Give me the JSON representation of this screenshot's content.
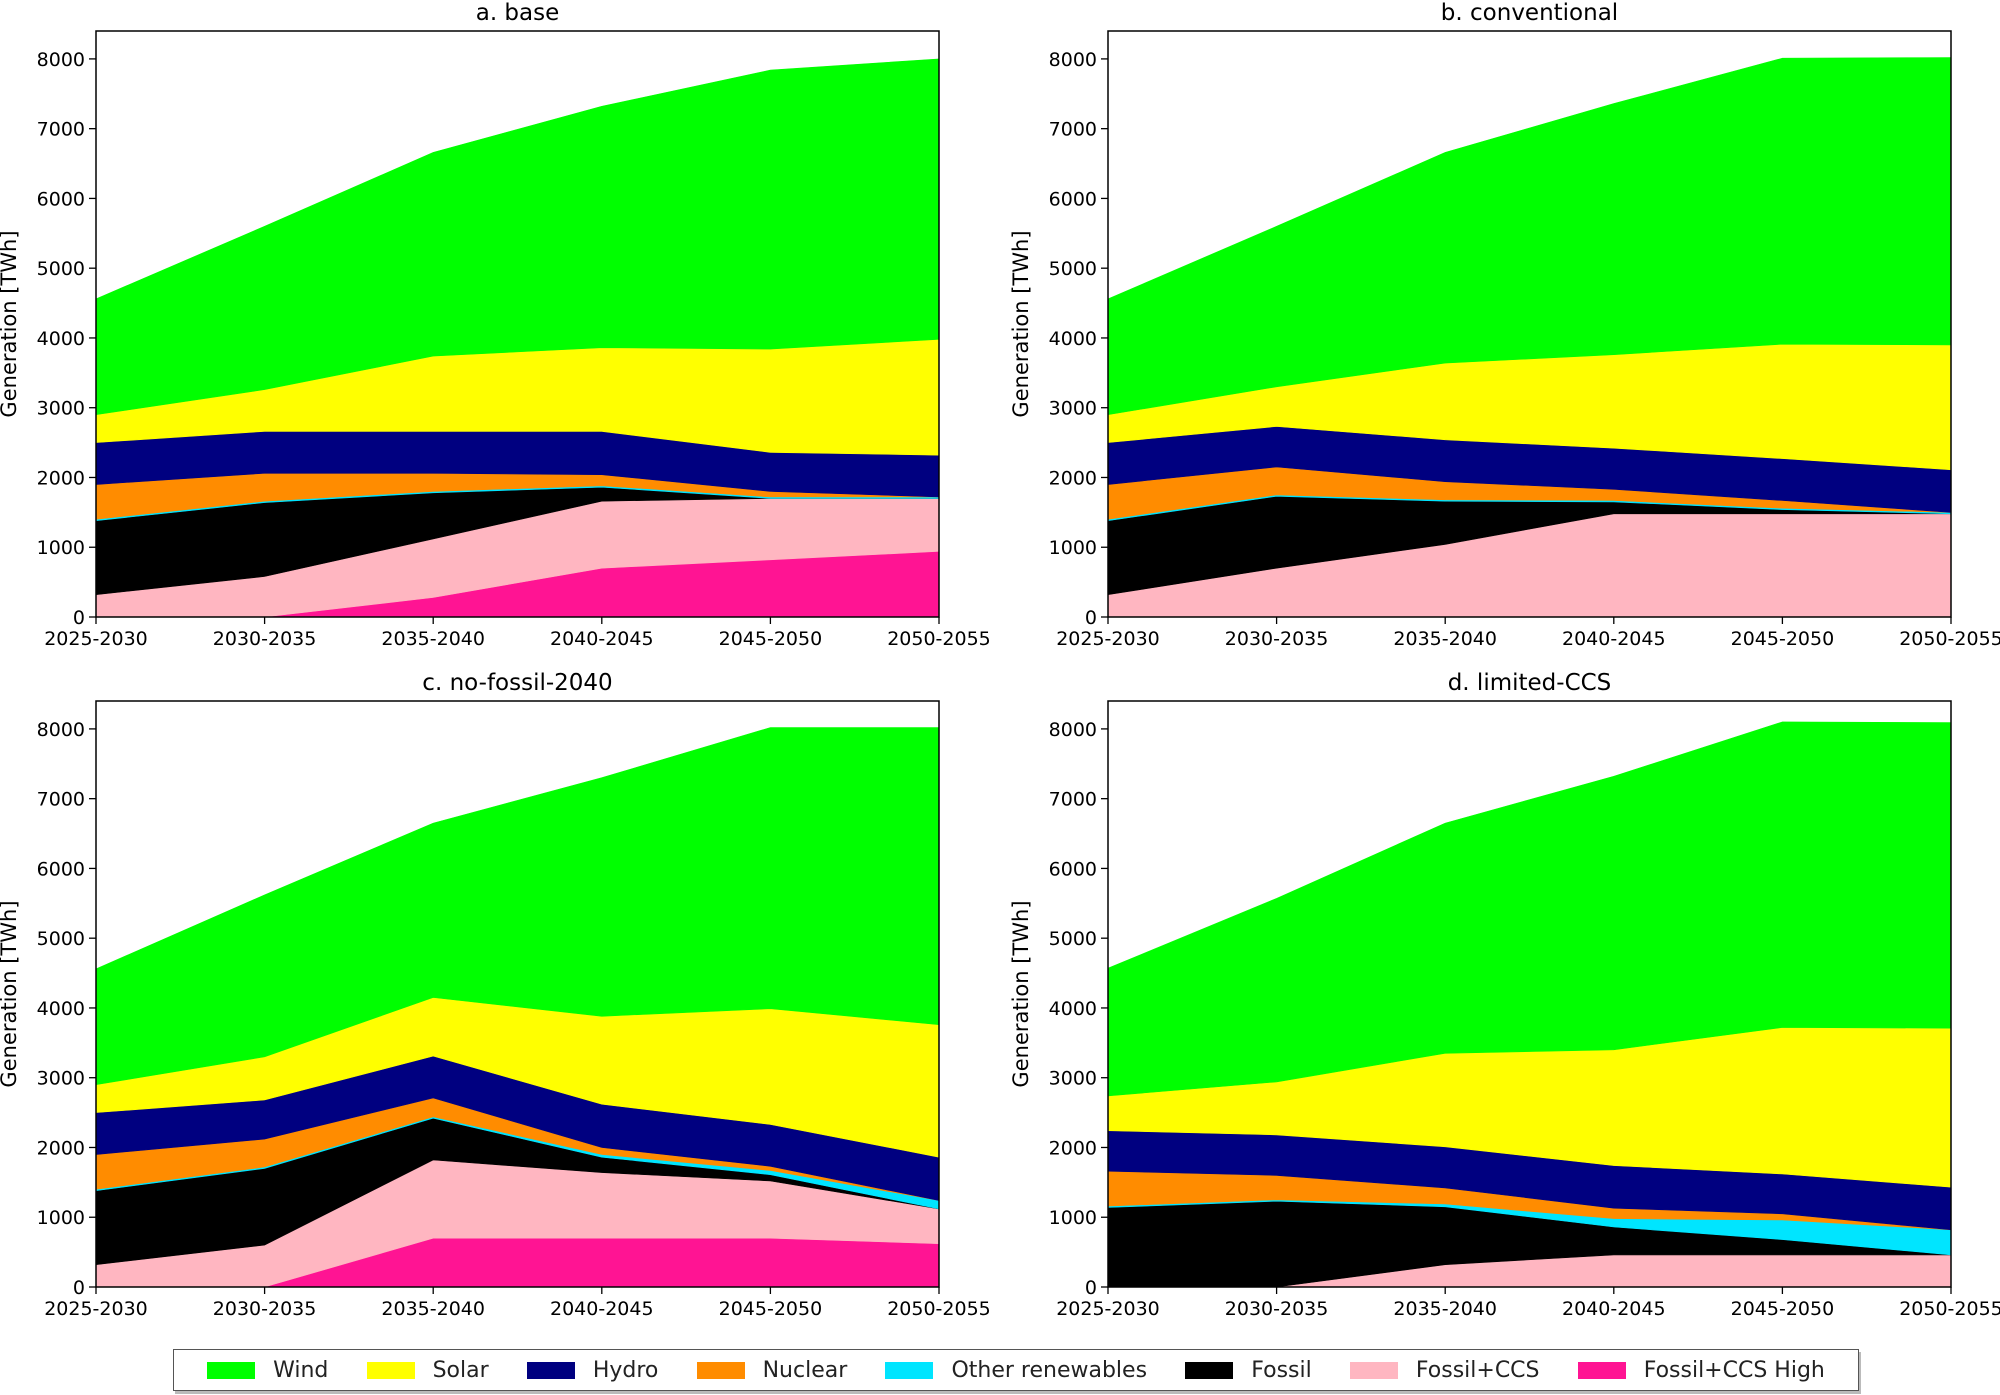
{
  "colors": {
    "Wind": "#00ff00",
    "Solar": "#ffff00",
    "Hydro": "#000080",
    "Nuclear": "#ff8c00",
    "Other renewables": "#00e5ff",
    "Fossil": "#000000",
    "Fossil+CCS": "#ffb6c1",
    "Fossil+CCS High": "#ff1493"
  },
  "legend": {
    "items": [
      "Wind",
      "Solar",
      "Hydro",
      "Nuclear",
      "Other renewables",
      "Fossil",
      "Fossil+CCS",
      "Fossil+CCS High"
    ]
  },
  "chart_data": [
    {
      "type": "area",
      "stacked": true,
      "title": "a. base",
      "ylabel": "Generation [TWh]",
      "xlabel": "",
      "categories": [
        "2025-2030",
        "2030-2035",
        "2035-2040",
        "2040-2045",
        "2045-2050",
        "2050-2055"
      ],
      "ylim": [
        0,
        8400
      ],
      "yticks": [
        0,
        1000,
        2000,
        3000,
        4000,
        5000,
        6000,
        7000,
        8000
      ],
      "series": [
        {
          "name": "Fossil+CCS High",
          "values": [
            0,
            0,
            280,
            700,
            820,
            940
          ]
        },
        {
          "name": "Fossil+CCS",
          "values": [
            320,
            580,
            840,
            960,
            880,
            760
          ]
        },
        {
          "name": "Fossil",
          "values": [
            1060,
            1060,
            660,
            200,
            0,
            0
          ]
        },
        {
          "name": "Other renewables",
          "values": [
            20,
            20,
            20,
            20,
            20,
            20
          ]
        },
        {
          "name": "Nuclear",
          "values": [
            500,
            400,
            260,
            160,
            80,
            0
          ]
        },
        {
          "name": "Hydro",
          "values": [
            600,
            600,
            600,
            620,
            560,
            600
          ]
        },
        {
          "name": "Solar",
          "values": [
            400,
            600,
            1080,
            1200,
            1480,
            1660
          ]
        },
        {
          "name": "Wind",
          "values": [
            1660,
            2340,
            2920,
            3460,
            4000,
            4020
          ]
        }
      ]
    },
    {
      "type": "area",
      "stacked": true,
      "title": "b. conventional",
      "ylabel": "Generation [TWh]",
      "xlabel": "",
      "categories": [
        "2025-2030",
        "2030-2035",
        "2035-2040",
        "2040-2045",
        "2045-2050",
        "2050-2055"
      ],
      "ylim": [
        0,
        8400
      ],
      "yticks": [
        0,
        1000,
        2000,
        3000,
        4000,
        5000,
        6000,
        7000,
        8000
      ],
      "series": [
        {
          "name": "Fossil+CCS High",
          "values": [
            0,
            0,
            0,
            0,
            0,
            0
          ]
        },
        {
          "name": "Fossil+CCS",
          "values": [
            320,
            700,
            1040,
            1480,
            1480,
            1480
          ]
        },
        {
          "name": "Fossil",
          "values": [
            1060,
            1030,
            620,
            170,
            60,
            0
          ]
        },
        {
          "name": "Other renewables",
          "values": [
            20,
            20,
            20,
            20,
            20,
            20
          ]
        },
        {
          "name": "Nuclear",
          "values": [
            500,
            400,
            260,
            160,
            110,
            0
          ]
        },
        {
          "name": "Hydro",
          "values": [
            600,
            580,
            600,
            590,
            600,
            610
          ]
        },
        {
          "name": "Solar",
          "values": [
            400,
            570,
            1100,
            1340,
            1640,
            1790
          ]
        },
        {
          "name": "Wind",
          "values": [
            1660,
            2300,
            3020,
            3600,
            4100,
            4120
          ]
        }
      ]
    },
    {
      "type": "area",
      "stacked": true,
      "title": "c. no-fossil-2040",
      "ylabel": "Generation [TWh]",
      "xlabel": "",
      "categories": [
        "2025-2030",
        "2030-2035",
        "2035-2040",
        "2040-2045",
        "2045-2050",
        "2050-2055"
      ],
      "ylim": [
        0,
        8400
      ],
      "yticks": [
        0,
        1000,
        2000,
        3000,
        4000,
        5000,
        6000,
        7000,
        8000
      ],
      "series": [
        {
          "name": "Fossil+CCS High",
          "values": [
            0,
            0,
            700,
            700,
            700,
            620
          ]
        },
        {
          "name": "Fossil+CCS",
          "values": [
            320,
            600,
            1120,
            940,
            820,
            500
          ]
        },
        {
          "name": "Fossil",
          "values": [
            1060,
            1100,
            600,
            220,
            90,
            0
          ]
        },
        {
          "name": "Other renewables",
          "values": [
            20,
            20,
            20,
            40,
            60,
            120
          ]
        },
        {
          "name": "Nuclear",
          "values": [
            500,
            400,
            270,
            100,
            60,
            0
          ]
        },
        {
          "name": "Hydro",
          "values": [
            600,
            560,
            600,
            620,
            600,
            620
          ]
        },
        {
          "name": "Solar",
          "values": [
            400,
            620,
            840,
            1260,
            1660,
            1900
          ]
        },
        {
          "name": "Wind",
          "values": [
            1660,
            2320,
            2500,
            3420,
            4030,
            4260
          ]
        }
      ]
    },
    {
      "type": "area",
      "stacked": true,
      "title": "d. limited-CCS",
      "ylabel": "Generation [TWh]",
      "xlabel": "",
      "categories": [
        "2025-2030",
        "2030-2035",
        "2035-2040",
        "2040-2045",
        "2045-2050",
        "2050-2055"
      ],
      "ylim": [
        0,
        8400
      ],
      "yticks": [
        0,
        1000,
        2000,
        3000,
        4000,
        5000,
        6000,
        7000,
        8000
      ],
      "series": [
        {
          "name": "Fossil+CCS High",
          "values": [
            0,
            0,
            0,
            0,
            0,
            0
          ]
        },
        {
          "name": "Fossil+CCS",
          "values": [
            0,
            0,
            320,
            460,
            460,
            460
          ]
        },
        {
          "name": "Fossil",
          "values": [
            1140,
            1230,
            830,
            400,
            220,
            0
          ]
        },
        {
          "name": "Other renewables",
          "values": [
            20,
            20,
            40,
            120,
            280,
            360
          ]
        },
        {
          "name": "Nuclear",
          "values": [
            500,
            350,
            230,
            150,
            90,
            0
          ]
        },
        {
          "name": "Hydro",
          "values": [
            580,
            580,
            590,
            610,
            570,
            610
          ]
        },
        {
          "name": "Solar",
          "values": [
            500,
            760,
            1340,
            1660,
            2100,
            2280
          ]
        },
        {
          "name": "Wind",
          "values": [
            1830,
            2630,
            3300,
            3920,
            4380,
            4380
          ]
        }
      ]
    }
  ]
}
